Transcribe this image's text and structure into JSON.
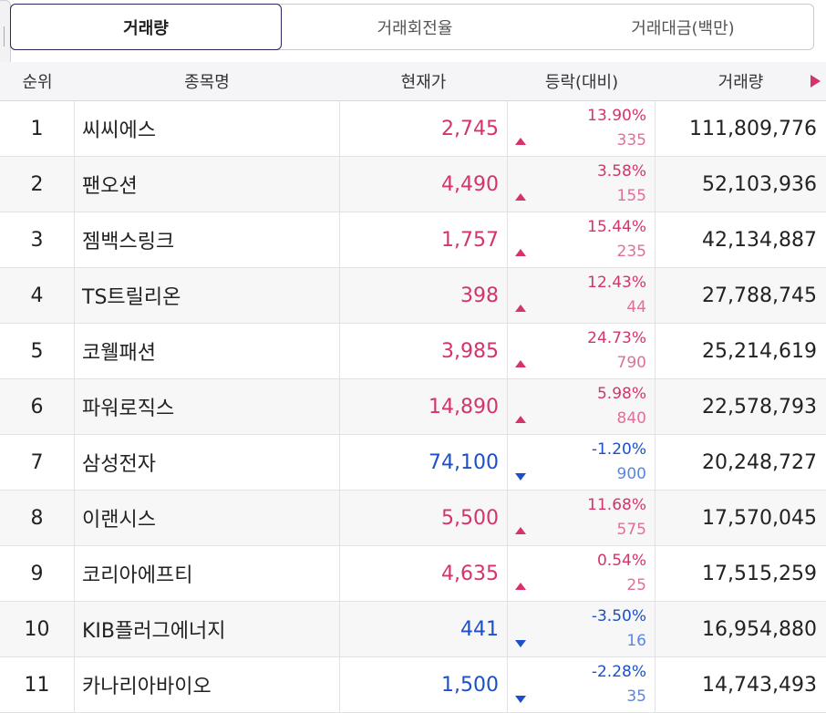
{
  "tabs": [
    {
      "label": "거래량",
      "active": true
    },
    {
      "label": "거래회전율",
      "active": false
    },
    {
      "label": "거래대금(백만)",
      "active": false
    }
  ],
  "headers": {
    "rank": "순위",
    "name": "종목명",
    "price": "현재가",
    "change": "등락(대비)",
    "volume": "거래량"
  },
  "colors": {
    "up": "#d6336c",
    "down": "#1c50c8",
    "accent": "#2b2660"
  },
  "rows": [
    {
      "rank": "1",
      "name": "씨씨에스",
      "price": "2,745",
      "pct": "13.90%",
      "diff": "335",
      "volume": "111,809,776",
      "dir": "up"
    },
    {
      "rank": "2",
      "name": "팬오션",
      "price": "4,490",
      "pct": "3.58%",
      "diff": "155",
      "volume": "52,103,936",
      "dir": "up"
    },
    {
      "rank": "3",
      "name": "젬백스링크",
      "price": "1,757",
      "pct": "15.44%",
      "diff": "235",
      "volume": "42,134,887",
      "dir": "up"
    },
    {
      "rank": "4",
      "name": "TS트릴리온",
      "price": "398",
      "pct": "12.43%",
      "diff": "44",
      "volume": "27,788,745",
      "dir": "up"
    },
    {
      "rank": "5",
      "name": "코웰패션",
      "price": "3,985",
      "pct": "24.73%",
      "diff": "790",
      "volume": "25,214,619",
      "dir": "up"
    },
    {
      "rank": "6",
      "name": "파워로직스",
      "price": "14,890",
      "pct": "5.98%",
      "diff": "840",
      "volume": "22,578,793",
      "dir": "up"
    },
    {
      "rank": "7",
      "name": "삼성전자",
      "price": "74,100",
      "pct": "-1.20%",
      "diff": "900",
      "volume": "20,248,727",
      "dir": "down"
    },
    {
      "rank": "8",
      "name": "이랜시스",
      "price": "5,500",
      "pct": "11.68%",
      "diff": "575",
      "volume": "17,570,045",
      "dir": "up"
    },
    {
      "rank": "9",
      "name": "코리아에프티",
      "price": "4,635",
      "pct": "0.54%",
      "diff": "25",
      "volume": "17,515,259",
      "dir": "up"
    },
    {
      "rank": "10",
      "name": "KIB플러그에너지",
      "price": "441",
      "pct": "-3.50%",
      "diff": "16",
      "volume": "16,954,880",
      "dir": "down"
    },
    {
      "rank": "11",
      "name": "카나리아바이오",
      "price": "1,500",
      "pct": "-2.28%",
      "diff": "35",
      "volume": "14,743,493",
      "dir": "down"
    }
  ]
}
